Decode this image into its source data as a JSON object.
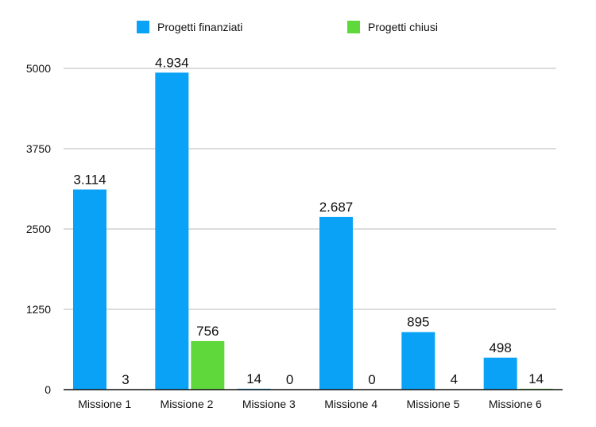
{
  "chart_data": {
    "type": "bar",
    "title": "",
    "xlabel": "",
    "ylabel": "",
    "categories": [
      "Missione 1",
      "Missione 2",
      "Missione 3",
      "Missione 4",
      "Missione 5",
      "Missione 6"
    ],
    "series": [
      {
        "name": "Progetti finanziati",
        "color": "#0aa2f6",
        "values": [
          3114,
          4934,
          14,
          2687,
          895,
          498
        ],
        "labels": [
          "3.114",
          "4.934",
          "14",
          "2.687",
          "895",
          "498"
        ]
      },
      {
        "name": "Progetti chiusi",
        "color": "#5fd83c",
        "values": [
          3,
          756,
          0,
          0,
          4,
          14
        ],
        "labels": [
          "3",
          "756",
          "0",
          "0",
          "4",
          "14"
        ]
      }
    ],
    "ylim": [
      0,
      5000
    ],
    "yticks": [
      0,
      1250,
      2500,
      3750,
      5000
    ],
    "ytick_labels": [
      "0",
      "1250",
      "2500",
      "3750",
      "5000"
    ],
    "grid": true,
    "legend_position": "top-center"
  }
}
